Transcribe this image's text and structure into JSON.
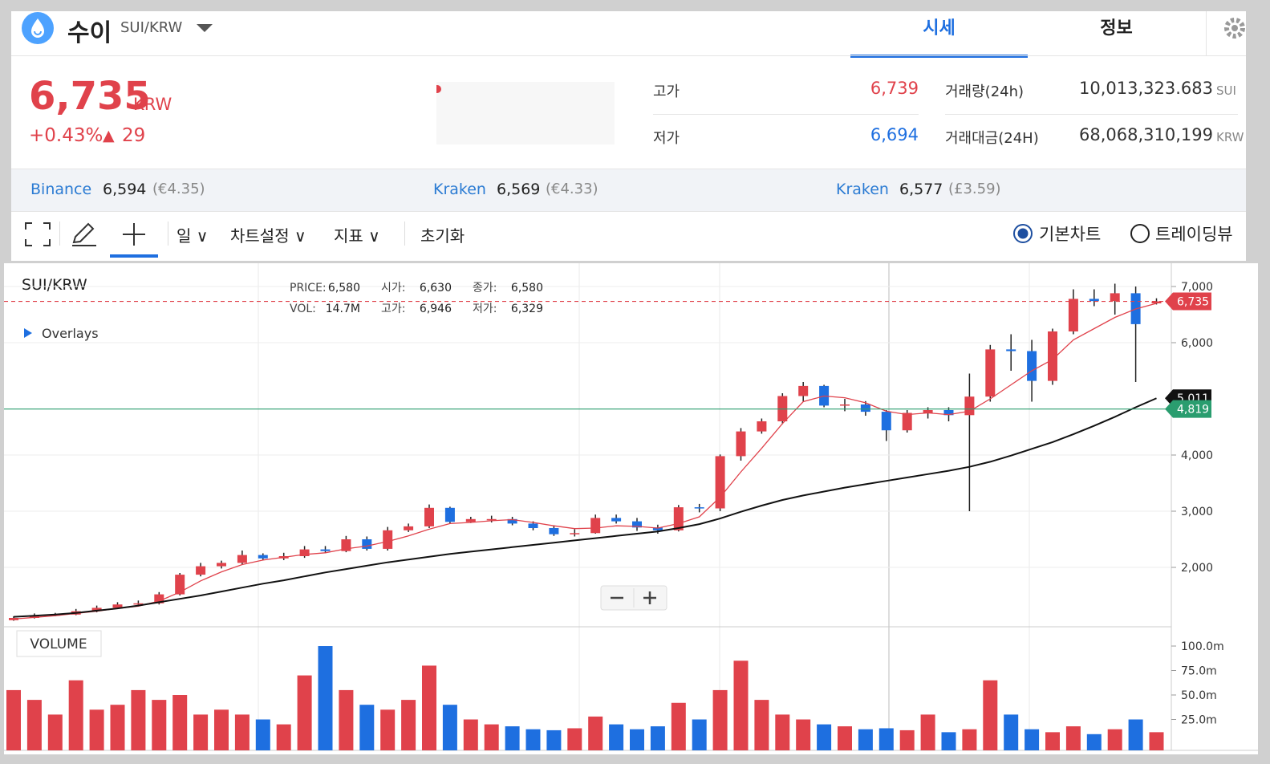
{
  "header": {
    "name": "수이",
    "symbol": "SUI/KRW",
    "tabs": [
      "시세",
      "정보"
    ]
  },
  "price": {
    "value": "6,735",
    "unit": "KRW",
    "change_pct": "+0.43%",
    "arrow": "▲",
    "change": "29"
  },
  "stats": {
    "high_label": "고가",
    "high": "6,739",
    "low_label": "저가",
    "low": "6,694",
    "volume_label": "거래량(24h)",
    "volume": "10,013,323.683",
    "volume_unit": "SUI",
    "amount_label": "거래대금(24H)",
    "amount": "68,068,310,199",
    "amount_unit": "KRW"
  },
  "exchanges": [
    {
      "name": "Binance",
      "price": "6,594",
      "foreign": "(€4.35)"
    },
    {
      "name": "Kraken",
      "price": "6,569",
      "foreign": "(€4.33)"
    },
    {
      "name": "Kraken",
      "price": "6,577",
      "foreign": "(£3.59)"
    }
  ],
  "toolbar": {
    "interval": "일",
    "settings": "차트설정",
    "indicators": "지표",
    "reset": "초기화",
    "modes": [
      "기본차트",
      "트레이딩뷰"
    ]
  },
  "chart_data": {
    "type": "candlestick",
    "title": "SUI/KRW",
    "overlays": "Overlays",
    "info": [
      [
        "PRICE:",
        "6,580"
      ],
      [
        "시가:",
        "6,630"
      ],
      [
        "종가:",
        "6,580"
      ],
      [
        "VOL:",
        "14.7M"
      ],
      [
        "고가:",
        "6,946"
      ],
      [
        "저가:",
        "6,329"
      ]
    ],
    "up_color": "#e0424b",
    "down_color": "#1e6fe0",
    "open": [
      1060,
      1100,
      1150,
      1160,
      1220,
      1280,
      1340,
      1360,
      1520,
      1870,
      2020,
      2080,
      2220,
      2160,
      2200,
      2320,
      2290,
      2500,
      2330,
      2660,
      2730,
      3060,
      2810,
      2860,
      2860,
      2780,
      2700,
      2590,
      2610,
      2880,
      2820,
      2710,
      2660,
      3070,
      3050,
      3980,
      4420,
      4600,
      5050,
      5230,
      4880,
      4900,
      4770,
      4440,
      4750,
      4800,
      4710,
      5040,
      5880,
      5850,
      5320,
      6200,
      6780,
      6740,
      6880,
      6700
    ],
    "high": [
      1130,
      1180,
      1190,
      1260,
      1320,
      1380,
      1410,
      1560,
      1900,
      2080,
      2120,
      2300,
      2250,
      2260,
      2380,
      2380,
      2560,
      2550,
      2720,
      2780,
      3120,
      3080,
      2900,
      2920,
      2900,
      2820,
      2750,
      2680,
      2940,
      2940,
      2880,
      2760,
      3110,
      3130,
      4010,
      4480,
      4650,
      5100,
      5300,
      5250,
      5000,
      4960,
      4800,
      4800,
      4850,
      4850,
      5450,
      5960,
      6150,
      6050,
      6250,
      6950,
      6950,
      7050,
      7000,
      6790
    ],
    "low": [
      1050,
      1090,
      1130,
      1150,
      1200,
      1260,
      1310,
      1340,
      1500,
      1840,
      1980,
      2050,
      2130,
      2130,
      2170,
      2250,
      2270,
      2300,
      2300,
      2630,
      2700,
      2780,
      2790,
      2800,
      2750,
      2660,
      2560,
      2550,
      2600,
      2780,
      2650,
      2600,
      2640,
      2980,
      3000,
      3900,
      4380,
      4550,
      4950,
      4850,
      4780,
      4700,
      4250,
      4400,
      4650,
      4600,
      3000,
      4950,
      5500,
      4950,
      5250,
      6150,
      6650,
      6500,
      5300,
      6680
    ],
    "close": [
      1100,
      1150,
      1160,
      1220,
      1280,
      1340,
      1360,
      1520,
      1870,
      2020,
      2080,
      2220,
      2160,
      2200,
      2320,
      2290,
      2500,
      2330,
      2660,
      2730,
      3060,
      2810,
      2860,
      2860,
      2780,
      2700,
      2590,
      2610,
      2880,
      2820,
      2710,
      2660,
      3070,
      3050,
      3980,
      4420,
      4600,
      5050,
      5230,
      4880,
      4900,
      4770,
      4440,
      4750,
      4800,
      4710,
      5040,
      5880,
      5850,
      5320,
      6200,
      6780,
      6740,
      6880,
      6330,
      6735
    ],
    "volume": [
      55,
      45,
      30,
      65,
      35,
      40,
      55,
      45,
      50,
      30,
      35,
      30,
      25,
      20,
      70,
      100,
      55,
      40,
      35,
      45,
      80,
      40,
      25,
      20,
      18,
      15,
      14,
      16,
      28,
      20,
      15,
      18,
      42,
      25,
      55,
      85,
      45,
      30,
      25,
      20,
      18,
      15,
      16,
      14,
      30,
      12,
      15,
      65,
      30,
      15,
      12,
      18,
      10,
      15,
      25,
      12
    ],
    "ma": [
      {
        "color": "#e0424b",
        "values": [
          1080,
          1110,
          1140,
          1180,
          1220,
          1270,
          1310,
          1400,
          1560,
          1760,
          1920,
          2050,
          2130,
          2180,
          2230,
          2260,
          2330,
          2380,
          2460,
          2560,
          2680,
          2780,
          2800,
          2830,
          2850,
          2800,
          2740,
          2690,
          2700,
          2740,
          2730,
          2700,
          2780,
          2900,
          3250,
          3700,
          4120,
          4560,
          4950,
          5050,
          5020,
          4930,
          4780,
          4720,
          4750,
          4720,
          4780,
          5000,
          5250,
          5500,
          5700,
          6050,
          6250,
          6450,
          6600,
          6700
        ]
      },
      {
        "color": "#111111",
        "values": [
          1120,
          1140,
          1160,
          1190,
          1230,
          1270,
          1320,
          1380,
          1440,
          1500,
          1570,
          1640,
          1710,
          1770,
          1840,
          1910,
          1970,
          2030,
          2090,
          2140,
          2190,
          2240,
          2280,
          2320,
          2360,
          2400,
          2440,
          2480,
          2520,
          2560,
          2600,
          2640,
          2700,
          2770,
          2870,
          2990,
          3100,
          3200,
          3280,
          3350,
          3420,
          3480,
          3540,
          3600,
          3660,
          3720,
          3790,
          3880,
          3990,
          4110,
          4230,
          4370,
          4520,
          4680,
          4850,
          5011
        ]
      }
    ],
    "ylim": [
      1000,
      7400
    ],
    "yticks": [
      {
        "value": 2000,
        "label": "2,000"
      },
      {
        "value": 3000,
        "label": "3,000"
      },
      {
        "value": 4000,
        "label": "4,000"
      },
      {
        "value": 6000,
        "label": "6,000"
      },
      {
        "value": 7000,
        "label": "7,000"
      }
    ],
    "markers": [
      {
        "value": 6735,
        "label": "6,735",
        "color": "#e0424b",
        "line": "dashed"
      },
      {
        "value": 5011,
        "label": "5,011",
        "color": "#111111",
        "line": "none"
      },
      {
        "value": 4819,
        "label": "4,819",
        "color": "#2a9d6f",
        "line": "solid"
      }
    ],
    "volume_title": "VOLUME",
    "volume_ylim": [
      0,
      116
    ],
    "volume_yticks": [
      {
        "value": 25,
        "label": "25.0m"
      },
      {
        "value": 50,
        "label": "50.0m"
      },
      {
        "value": 75,
        "label": "75.0m"
      },
      {
        "value": 100,
        "label": "100.0m"
      }
    ]
  }
}
